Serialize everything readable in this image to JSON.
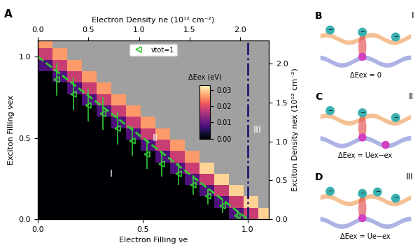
{
  "chart_data": {
    "type": "heatmap",
    "panel_label": "A",
    "x_label": "Electron Filling νe",
    "y_label": "Exciton Filling νex",
    "x2label": "Electron Density ne (10¹² cm⁻²)",
    "y2label": "Exciton Density nex (10¹² cm⁻²)",
    "xlim": [
      0,
      1.1
    ],
    "ylim": [
      0,
      1.1
    ],
    "xticks": [
      {
        "value": 0,
        "label": "0.0"
      },
      0.5,
      {
        "value": 1,
        "label": "1.0"
      }
    ],
    "yticks": [
      {
        "value": 0,
        "label": "0.0"
      },
      0.5,
      {
        "value": 1,
        "label": "1.0"
      }
    ],
    "x2lim": [
      0,
      2.28
    ],
    "x2ticks": [
      {
        "value": 0,
        "label": "0.0"
      },
      0.5,
      {
        "value": 1,
        "label": "1.0"
      },
      1.5,
      {
        "value": 2,
        "label": "2.0"
      }
    ],
    "y2lim": [
      0,
      2.3
    ],
    "y2ticks": [
      {
        "value": 0,
        "label": "0.0"
      },
      0.5,
      {
        "value": 1,
        "label": "1.0"
      },
      1.5,
      {
        "value": 2,
        "label": "2.0"
      }
    ],
    "x_edges": [
      0,
      0.07,
      0.14,
      0.21,
      0.28,
      0.35,
      0.42,
      0.49,
      0.56,
      0.63,
      0.7,
      0.77,
      0.84,
      0.91,
      0.98,
      1.05,
      1.12
    ],
    "y_edges": [
      0,
      0.07,
      0.14,
      0.21,
      0.28,
      0.35,
      0.42,
      0.49,
      0.56,
      0.63,
      0.7,
      0.77,
      0.84,
      0.91,
      0.98,
      1.05,
      1.12
    ],
    "cells": [
      [
        0,
        0,
        0,
        0,
        0,
        0,
        0,
        0,
        0,
        0,
        0,
        0,
        0,
        0.008,
        0.018,
        0.03
      ],
      [
        0,
        0,
        0,
        0,
        0,
        0,
        0,
        0,
        0,
        0,
        0,
        0,
        0.008,
        0.018,
        0.03,
        null
      ],
      [
        0,
        0,
        0,
        0,
        0,
        0,
        0,
        0,
        0,
        0,
        0,
        0.008,
        0.018,
        0.03,
        null,
        null
      ],
      [
        0,
        0,
        0,
        0,
        0,
        0,
        0,
        0,
        0,
        0,
        0.008,
        0.018,
        0.03,
        null,
        null,
        null
      ],
      [
        0,
        0,
        0,
        0,
        0,
        0,
        0,
        0,
        0,
        0.008,
        0.018,
        0.03,
        null,
        null,
        null,
        null
      ],
      [
        0,
        0,
        0,
        0,
        0,
        0,
        0,
        0,
        0.008,
        0.018,
        0.026,
        null,
        null,
        null,
        null,
        null
      ],
      [
        0,
        0,
        0,
        0,
        0,
        0,
        0,
        0.008,
        0.018,
        0.026,
        null,
        null,
        null,
        null,
        null,
        null
      ],
      [
        0,
        0,
        0,
        0,
        0,
        0,
        0.008,
        0.018,
        0.026,
        null,
        null,
        null,
        null,
        null,
        null,
        null
      ],
      [
        0,
        0,
        0,
        0,
        0,
        0.008,
        0.018,
        0.026,
        null,
        null,
        null,
        null,
        null,
        null,
        null,
        null
      ],
      [
        0,
        0,
        0,
        0,
        0.008,
        0.018,
        0.026,
        null,
        null,
        null,
        null,
        null,
        null,
        null,
        null,
        null
      ],
      [
        0,
        0,
        0,
        0.008,
        0.018,
        0.026,
        null,
        null,
        null,
        null,
        null,
        null,
        null,
        null,
        null,
        null
      ],
      [
        0,
        0,
        0.008,
        0.018,
        0.026,
        null,
        null,
        null,
        null,
        null,
        null,
        null,
        null,
        null,
        null,
        null
      ],
      [
        0,
        0.008,
        0.018,
        0.026,
        null,
        null,
        null,
        null,
        null,
        null,
        null,
        null,
        null,
        null,
        null,
        null
      ],
      [
        0.008,
        0.018,
        0.026,
        null,
        null,
        null,
        null,
        null,
        null,
        null,
        null,
        null,
        null,
        null,
        null,
        null
      ],
      [
        0.018,
        0.026,
        null,
        null,
        null,
        null,
        null,
        null,
        null,
        null,
        null,
        null,
        null,
        null,
        null,
        null
      ],
      [
        0.026,
        null,
        null,
        null,
        null,
        null,
        null,
        null,
        null,
        null,
        null,
        null,
        null,
        null,
        null,
        null
      ]
    ],
    "colorbar": {
      "label": "ΔEex (eV)",
      "range": [
        0,
        0.033
      ],
      "ticks": [
        {
          "value": 0,
          "label": "0.00"
        },
        0.01,
        0.02,
        0.03
      ]
    },
    "series": [
      {
        "name": "νtot=1",
        "type": "scatter",
        "marker": "triangle",
        "color": "#33cc33",
        "x": [
          0.09,
          0.17,
          0.24,
          0.31,
          0.38,
          0.45,
          0.52,
          0.59,
          0.67,
          0.74,
          0.81,
          0.88,
          0.95
        ],
        "y": [
          0.86,
          0.77,
          0.7,
          0.65,
          0.56,
          0.48,
          0.4,
          0.34,
          0.28,
          0.21,
          0.14,
          0.08,
          0.02
        ],
        "yerr": [
          0.1,
          0.1,
          0.1,
          0.1,
          0.1,
          0.09,
          0.09,
          0.08,
          0.07,
          0.06,
          0.05,
          0.04,
          0.03
        ]
      },
      {
        "type": "line",
        "line_style": "dashed",
        "color": "#33cc33",
        "x": [
          0,
          1
        ],
        "y": [
          1,
          0
        ]
      },
      {
        "type": "vline",
        "line_style": "dashdot",
        "color": "#1a1a6e",
        "x": [
          1.0
        ]
      }
    ],
    "regions": [
      {
        "label": "I",
        "x": 0.35,
        "y": 0.28
      },
      {
        "label": "II",
        "x": 0.56,
        "y": 0.5
      },
      {
        "label": "III",
        "x": 1.045,
        "y": 0.55
      }
    ],
    "legend": "upper center"
  },
  "panels": [
    {
      "letter": "B",
      "region": "I",
      "equation": "ΔEex = 0"
    },
    {
      "letter": "C",
      "region": "II",
      "equation": "ΔEex = Uex−ex"
    },
    {
      "letter": "D",
      "region": "III",
      "equation": "ΔEex = Ue−ex"
    }
  ],
  "electron_label": "−"
}
